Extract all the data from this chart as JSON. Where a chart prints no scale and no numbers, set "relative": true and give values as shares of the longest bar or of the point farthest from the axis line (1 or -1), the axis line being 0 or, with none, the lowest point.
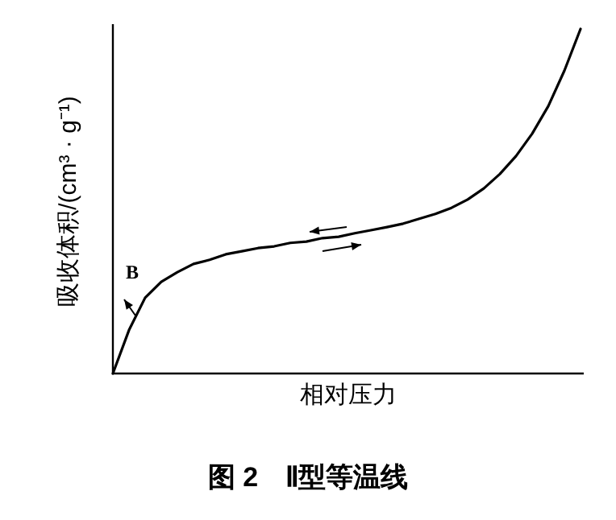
{
  "chart_data": {
    "type": "line",
    "title": "图 2　Ⅱ型等温线",
    "xlabel": "相对压力",
    "ylabel": "吸收体积/(cm³ · g⁻¹)",
    "relative": true,
    "categories": [
      null,
      null,
      null,
      null,
      null,
      null,
      null,
      null,
      null,
      null,
      null,
      null,
      null,
      null,
      null,
      null,
      null,
      null,
      null,
      null,
      null,
      null,
      null,
      null,
      null,
      null,
      null,
      null,
      null,
      null
    ],
    "series": [
      {
        "color": "#000000",
        "values": [
          0,
          0.126,
          0.22,
          0.266,
          0.294,
          0.318,
          0.33,
          0.346,
          0.355,
          0.364,
          0.369,
          0.379,
          0.383,
          0.393,
          0.397,
          0.407,
          0.416,
          0.425,
          0.435,
          0.449,
          0.463,
          0.481,
          0.505,
          0.537,
          0.579,
          0.631,
          0.696,
          0.776,
          0.879,
          1.0
        ]
      }
    ],
    "annotations": [
      "B"
    ]
  }
}
